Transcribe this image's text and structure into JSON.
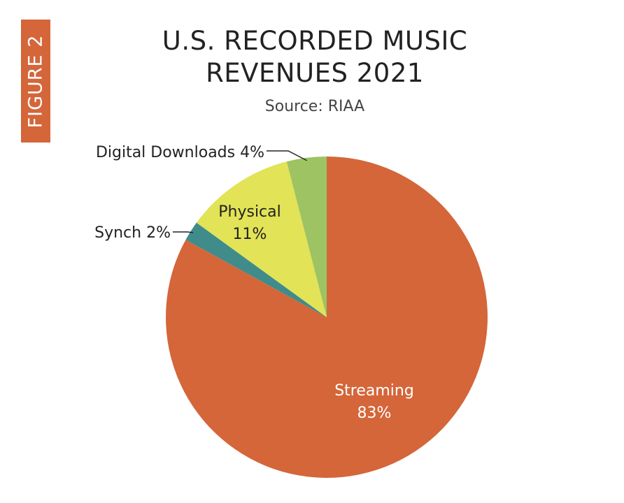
{
  "figure_tab": {
    "label": "FIGURE 2"
  },
  "chart_data": {
    "type": "pie",
    "title_lines": [
      "U.S. RECORDED MUSIC",
      "REVENUES 2021"
    ],
    "subtitle": "Source: RIAA",
    "slices": [
      {
        "name": "Streaming",
        "value": 83,
        "value_label": "83%",
        "color": "#d4663a"
      },
      {
        "name": "Synch",
        "value": 2,
        "value_label": "2%",
        "color": "#3f8c8a"
      },
      {
        "name": "Physical",
        "value": 11,
        "value_label": "11%",
        "color": "#e2e356"
      },
      {
        "name": "Digital Downloads",
        "value": 4,
        "value_label": "4%",
        "color": "#9ec363"
      }
    ],
    "callout_labels": {
      "synch": "Synch 2%",
      "digital_downloads": "Digital Downloads 4%"
    }
  }
}
